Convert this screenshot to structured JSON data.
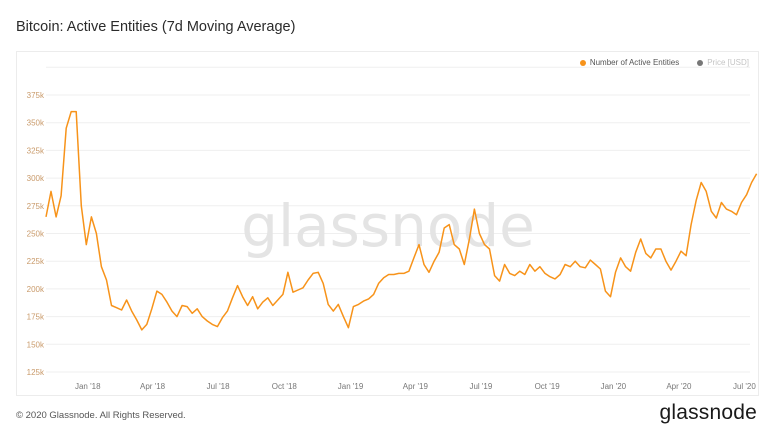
{
  "header": {
    "title": "Bitcoin: Active Entities (7d Moving Average)"
  },
  "footer": {
    "copyright": "© 2020 Glassnode. All Rights Reserved.",
    "logo": "glassnode"
  },
  "colors": {
    "series": "#f7931a",
    "price": "#777777",
    "grid": "#efefef"
  },
  "chart_data": {
    "type": "line",
    "title": "Bitcoin: Active Entities (7d Moving Average)",
    "watermark": "glassnode",
    "legend": {
      "placement": "top-right",
      "entries": [
        {
          "label": "Number of Active Entities",
          "active": true
        },
        {
          "label": "Price [USD]",
          "active": false
        }
      ]
    },
    "xlabel": "",
    "ylabel": "",
    "x_ticks": [
      {
        "label": "Jan '18",
        "date": "2018-01-01"
      },
      {
        "label": "Apr '18",
        "date": "2018-04-01"
      },
      {
        "label": "Jul '18",
        "date": "2018-07-01"
      },
      {
        "label": "Oct '18",
        "date": "2018-10-01"
      },
      {
        "label": "Jan '19",
        "date": "2019-01-01"
      },
      {
        "label": "Apr '19",
        "date": "2019-04-01"
      },
      {
        "label": "Jul '19",
        "date": "2019-07-01"
      },
      {
        "label": "Oct '19",
        "date": "2019-10-01"
      },
      {
        "label": "Jan '20",
        "date": "2020-01-01"
      },
      {
        "label": "Apr '20",
        "date": "2020-04-01"
      },
      {
        "label": "Jul '20",
        "date": "2020-07-01"
      }
    ],
    "y_ticks": [
      {
        "label": "125k",
        "value": 125000
      },
      {
        "label": "150k",
        "value": 150000
      },
      {
        "label": "175k",
        "value": 175000
      },
      {
        "label": "200k",
        "value": 200000
      },
      {
        "label": "225k",
        "value": 225000
      },
      {
        "label": "250k",
        "value": 250000
      },
      {
        "label": "275k",
        "value": 275000
      },
      {
        "label": "300k",
        "value": 300000
      },
      {
        "label": "325k",
        "value": 325000
      },
      {
        "label": "350k",
        "value": 350000
      },
      {
        "label": "375k",
        "value": 375000
      }
    ],
    "ylim": [
      125000,
      400000
    ],
    "xlim": [
      "2017-11-04",
      "2020-07-20"
    ],
    "grid": true,
    "series": [
      {
        "name": "Number of Active Entities",
        "start_date": "2017-11-04",
        "interval_days": 7,
        "unit": "thousands",
        "values": [
          265,
          288,
          265,
          284,
          345,
          360,
          360,
          275,
          240,
          265,
          250,
          220,
          208,
          185,
          183,
          181,
          190,
          180,
          172,
          163,
          168,
          182,
          198,
          195,
          188,
          180,
          175,
          185,
          184,
          178,
          182,
          175,
          171,
          168,
          166,
          174,
          180,
          192,
          203,
          193,
          185,
          193,
          182,
          188,
          192,
          185,
          190,
          195,
          215,
          197,
          199,
          201,
          208,
          214,
          215,
          205,
          186,
          180,
          186,
          175,
          165,
          184,
          186,
          189,
          191,
          195,
          205,
          210,
          213,
          213,
          214,
          214,
          216,
          228,
          240,
          222,
          215,
          225,
          233,
          255,
          258,
          240,
          236,
          222,
          245,
          272,
          250,
          240,
          236,
          212,
          207,
          222,
          214,
          212,
          216,
          213,
          222,
          216,
          220,
          214,
          211,
          209,
          213,
          222,
          220,
          225,
          220,
          219,
          226,
          222,
          218,
          198,
          193,
          215,
          228,
          220,
          216,
          233,
          245,
          232,
          228,
          236,
          236,
          225,
          217,
          225,
          234,
          230,
          258,
          280,
          296,
          288,
          270,
          264,
          278,
          272,
          270,
          267,
          278,
          285,
          296,
          304
        ]
      }
    ]
  }
}
